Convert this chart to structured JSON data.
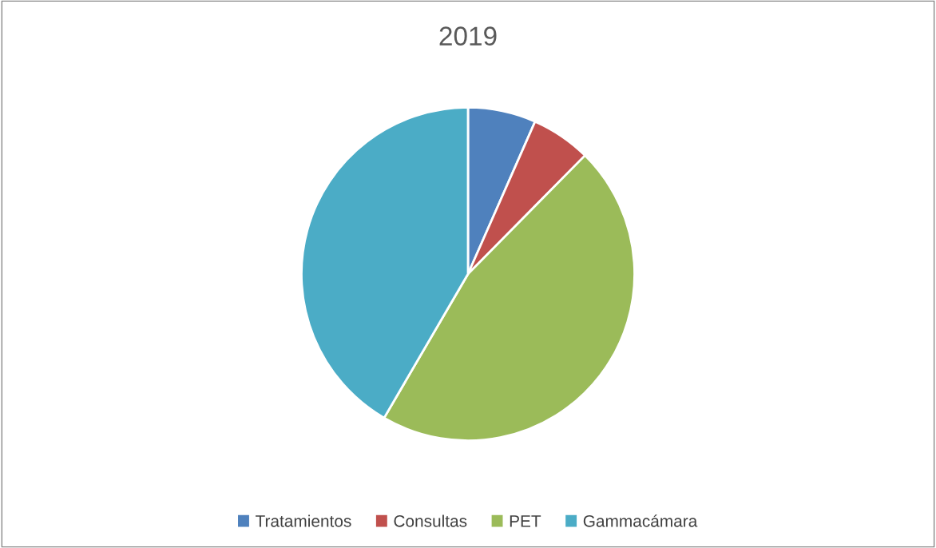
{
  "chart_data": {
    "type": "pie",
    "title": "2019",
    "categories": [
      "Tratamientos",
      "Consultas",
      "PET",
      "Gammacámara"
    ],
    "values": [
      6.6,
      5.8,
      46.0,
      41.6
    ],
    "colors": [
      "#4f81bd",
      "#c0504d",
      "#9bbb59",
      "#4bacc6"
    ],
    "legend": "bottom"
  }
}
